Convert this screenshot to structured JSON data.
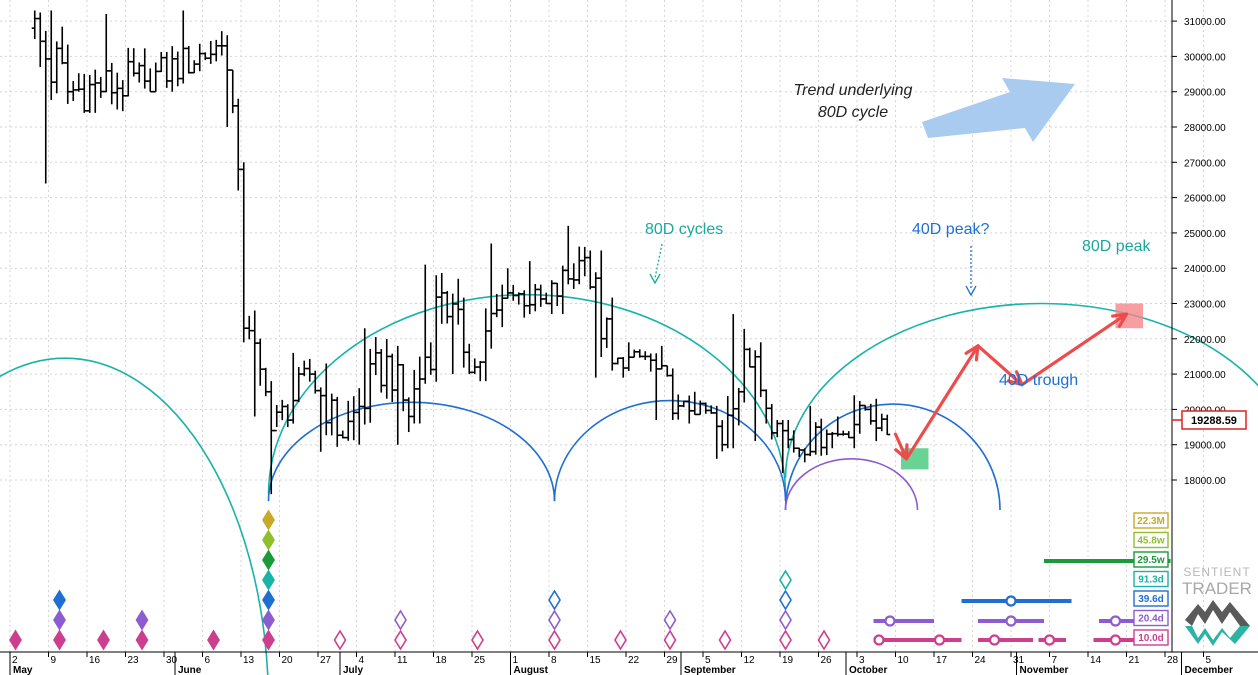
{
  "chart_data": {
    "type": "bar",
    "subtype": "ohlc-price-with-cycle-projections",
    "title": "",
    "xlabel": "",
    "ylabel": "",
    "ylim": [
      17300,
      31300
    ],
    "y_ticks": [
      18000,
      19000,
      20000,
      21000,
      22000,
      23000,
      24000,
      25000,
      26000,
      27000,
      28000,
      29000,
      30000,
      31000
    ],
    "y_tick_labels": [
      "18000.00",
      "19000.00",
      "20000.00",
      "21000.00",
      "22000.00",
      "23000.00",
      "24000.00",
      "25000.00",
      "26000.00",
      "27000.00",
      "28000.00",
      "29000.00",
      "30000.00",
      "31000.00"
    ],
    "last_price": 19288.59,
    "last_price_label": "19288.59",
    "x_axis": {
      "start_date": "2022-05-02",
      "end_date": "2022-12-05",
      "day_labels": [
        {
          "date": "2022-05-02",
          "label": "2"
        },
        {
          "date": "2022-05-09",
          "label": "9"
        },
        {
          "date": "2022-05-16",
          "label": "16"
        },
        {
          "date": "2022-05-23",
          "label": "23"
        },
        {
          "date": "2022-05-30",
          "label": "30"
        },
        {
          "date": "2022-06-06",
          "label": "6"
        },
        {
          "date": "2022-06-13",
          "label": "13"
        },
        {
          "date": "2022-06-20",
          "label": "20"
        },
        {
          "date": "2022-06-27",
          "label": "27"
        },
        {
          "date": "2022-07-04",
          "label": "4"
        },
        {
          "date": "2022-07-11",
          "label": "11"
        },
        {
          "date": "2022-07-18",
          "label": "18"
        },
        {
          "date": "2022-07-25",
          "label": "25"
        },
        {
          "date": "2022-08-01",
          "label": "1"
        },
        {
          "date": "2022-08-08",
          "label": "8"
        },
        {
          "date": "2022-08-15",
          "label": "15"
        },
        {
          "date": "2022-08-22",
          "label": "22"
        },
        {
          "date": "2022-08-29",
          "label": "29"
        },
        {
          "date": "2022-09-05",
          "label": "5"
        },
        {
          "date": "2022-09-12",
          "label": "12"
        },
        {
          "date": "2022-09-19",
          "label": "19"
        },
        {
          "date": "2022-09-26",
          "label": "26"
        },
        {
          "date": "2022-10-03",
          "label": "3"
        },
        {
          "date": "2022-10-10",
          "label": "10"
        },
        {
          "date": "2022-10-17",
          "label": "17"
        },
        {
          "date": "2022-10-24",
          "label": "24"
        },
        {
          "date": "2022-10-31",
          "label": "31"
        },
        {
          "date": "2022-11-07",
          "label": "7"
        },
        {
          "date": "2022-11-14",
          "label": "14"
        },
        {
          "date": "2022-11-21",
          "label": "21"
        },
        {
          "date": "2022-11-28",
          "label": "28"
        },
        {
          "date": "2022-12-05",
          "label": "5"
        }
      ],
      "month_labels": [
        {
          "date": "2022-05-02",
          "label": "May"
        },
        {
          "date": "2022-06-01",
          "label": "June"
        },
        {
          "date": "2022-07-01",
          "label": "July"
        },
        {
          "date": "2022-08-01",
          "label": "August"
        },
        {
          "date": "2022-09-01",
          "label": "September"
        },
        {
          "date": "2022-10-01",
          "label": "October"
        },
        {
          "date": "2022-11-01",
          "label": "November"
        },
        {
          "date": "2022-12-01",
          "label": "December"
        }
      ]
    },
    "ohlc_segments": [
      {
        "start": "2022-05-06",
        "end": "2022-05-13",
        "from": 30800,
        "to": 29000,
        "low": 26400,
        "high": 31300
      },
      {
        "start": "2022-05-13",
        "end": "2022-05-27",
        "from": 29000,
        "to": 29300,
        "low": 28400,
        "high": 31200
      },
      {
        "start": "2022-05-27",
        "end": "2022-06-10",
        "from": 29300,
        "to": 30300,
        "low": 29000,
        "high": 31300
      },
      {
        "start": "2022-06-10",
        "end": "2022-06-12",
        "from": 30300,
        "to": 28600,
        "low": 28000,
        "high": 30600
      },
      {
        "start": "2022-06-12",
        "end": "2022-06-13",
        "from": 28600,
        "to": 26800,
        "low": 26200,
        "high": 28800
      },
      {
        "start": "2022-06-13",
        "end": "2022-06-14",
        "from": 26800,
        "to": 22300,
        "low": 21900,
        "high": 27000
      },
      {
        "start": "2022-06-14",
        "end": "2022-06-18",
        "from": 22300,
        "to": 20500,
        "low": 19800,
        "high": 22800
      },
      {
        "start": "2022-06-18",
        "end": "2022-06-19",
        "from": 20500,
        "to": 19400,
        "low": 17600,
        "high": 20800
      },
      {
        "start": "2022-06-19",
        "end": "2022-06-26",
        "from": 19400,
        "to": 21000,
        "low": 19500,
        "high": 21600
      },
      {
        "start": "2022-06-26",
        "end": "2022-07-02",
        "from": 21000,
        "to": 19200,
        "low": 18800,
        "high": 21300
      },
      {
        "start": "2022-07-02",
        "end": "2022-07-10",
        "from": 19200,
        "to": 21500,
        "low": 19000,
        "high": 22300
      },
      {
        "start": "2022-07-10",
        "end": "2022-07-14",
        "from": 21500,
        "to": 19800,
        "low": 19000,
        "high": 21800
      },
      {
        "start": "2022-07-14",
        "end": "2022-07-20",
        "from": 19800,
        "to": 23300,
        "low": 19600,
        "high": 24100
      },
      {
        "start": "2022-07-20",
        "end": "2022-07-26",
        "from": 23300,
        "to": 21200,
        "low": 21000,
        "high": 23700
      },
      {
        "start": "2022-07-26",
        "end": "2022-08-01",
        "from": 21200,
        "to": 23300,
        "low": 20800,
        "high": 24700
      },
      {
        "start": "2022-08-01",
        "end": "2022-08-08",
        "from": 23300,
        "to": 23000,
        "low": 22600,
        "high": 24200
      },
      {
        "start": "2022-08-08",
        "end": "2022-08-15",
        "from": 23000,
        "to": 24300,
        "low": 22700,
        "high": 25200
      },
      {
        "start": "2022-08-15",
        "end": "2022-08-20",
        "from": 24300,
        "to": 21300,
        "low": 20900,
        "high": 24500
      },
      {
        "start": "2022-08-20",
        "end": "2022-08-26",
        "from": 21300,
        "to": 21500,
        "low": 20900,
        "high": 21900
      },
      {
        "start": "2022-08-26",
        "end": "2022-09-01",
        "from": 21500,
        "to": 20100,
        "low": 19700,
        "high": 21800
      },
      {
        "start": "2022-09-01",
        "end": "2022-09-07",
        "from": 20100,
        "to": 19900,
        "low": 19600,
        "high": 20500
      },
      {
        "start": "2022-09-07",
        "end": "2022-09-09",
        "from": 19900,
        "to": 19000,
        "low": 18600,
        "high": 20100
      },
      {
        "start": "2022-09-09",
        "end": "2022-09-13",
        "from": 19000,
        "to": 21700,
        "low": 18900,
        "high": 22700
      },
      {
        "start": "2022-09-13",
        "end": "2022-09-19",
        "from": 21700,
        "to": 19600,
        "low": 19100,
        "high": 21900
      },
      {
        "start": "2022-09-19",
        "end": "2022-09-22",
        "from": 19600,
        "to": 18900,
        "low": 18200,
        "high": 19700
      },
      {
        "start": "2022-09-22",
        "end": "2022-09-28",
        "from": 18900,
        "to": 19300,
        "low": 18500,
        "high": 20100
      },
      {
        "start": "2022-09-28",
        "end": "2022-10-01",
        "from": 19300,
        "to": 19300,
        "low": 18900,
        "high": 19800
      },
      {
        "start": "2022-10-01",
        "end": "2022-10-05",
        "from": 19300,
        "to": 20000,
        "low": 18900,
        "high": 20400
      },
      {
        "start": "2022-10-05",
        "end": "2022-10-09",
        "from": 20000,
        "to": 19288.59,
        "low": 19100,
        "high": 20300
      }
    ],
    "cycle_arcs": [
      {
        "color": "#19b3a8",
        "start": "2022-04-05",
        "end": "2022-06-18",
        "peak": 21450,
        "base": null
      },
      {
        "color": "#19b3a8",
        "start": "2022-06-18",
        "end": "2022-09-20",
        "peak": 23250,
        "base": 17600
      },
      {
        "color": "#19b3a8",
        "start": "2022-09-20",
        "end": "2022-12-22",
        "peak": 23000,
        "base": 18050
      },
      {
        "color": "#1f6fd2",
        "start": "2022-06-18",
        "end": "2022-08-09",
        "peak": 20200,
        "base": 17400
      },
      {
        "color": "#1f6fd2",
        "start": "2022-08-09",
        "end": "2022-09-20",
        "peak": 20250,
        "base": 17400
      },
      {
        "color": "#1f6fd2",
        "start": "2022-09-20",
        "end": "2022-10-29",
        "peak": 20150,
        "base": 17150
      },
      {
        "color": "#8e5cd1",
        "start": "2022-09-20",
        "end": "2022-10-14",
        "peak": 18600,
        "base": 17150
      }
    ],
    "projection_path": [
      {
        "date": "2022-10-10",
        "value": 19300
      },
      {
        "date": "2022-10-12",
        "value": 18600
      },
      {
        "date": "2022-10-25",
        "value": 21800
      },
      {
        "date": "2022-11-02",
        "value": 20700
      },
      {
        "date": "2022-11-21",
        "value": 22700
      }
    ],
    "target_boxes": [
      {
        "color": "#44c77a",
        "start": "2022-10-11",
        "end": "2022-10-16",
        "low": 18300,
        "high": 18900
      },
      {
        "color": "#f4868a",
        "start": "2022-11-19",
        "end": "2022-11-24",
        "low": 22300,
        "high": 23000
      }
    ],
    "annotations": {
      "trend_text": [
        "Trend underlying",
        "80D cycle"
      ],
      "label_80d_cycles": "80D cycles",
      "label_40d_peak": "40D peak?",
      "label_80d_peak": "80D peak",
      "label_40d_trough": "40D trough"
    },
    "cycle_tags": [
      {
        "label": "22.3M",
        "color": "#c8a92a"
      },
      {
        "label": "45.8w",
        "color": "#8fbf2a"
      },
      {
        "label": "29.5w",
        "color": "#1a9a3a"
      },
      {
        "label": "91.3d",
        "color": "#19b3a8"
      },
      {
        "label": "39.6d",
        "color": "#1f6fd2"
      },
      {
        "label": "20.4d",
        "color": "#8e5cd1"
      },
      {
        "label": "10.0d",
        "color": "#cc3f8f"
      }
    ],
    "markers": {
      "rows": [
        {
          "color": "#cc3f8f",
          "filled": [
            "2022-05-03",
            "2022-05-11",
            "2022-05-19",
            "2022-05-26",
            "2022-06-08",
            "2022-06-18"
          ],
          "hollow": [
            "2022-07-01",
            "2022-07-12",
            "2022-07-26",
            "2022-08-09",
            "2022-08-21",
            "2022-08-30",
            "2022-09-09",
            "2022-09-20",
            "2022-09-27"
          ]
        },
        {
          "color": "#8e5cd1",
          "filled": [
            "2022-05-11",
            "2022-05-26",
            "2022-06-18"
          ],
          "hollow": [
            "2022-07-12",
            "2022-08-09",
            "2022-08-30",
            "2022-09-20"
          ]
        },
        {
          "color": "#1f6fd2",
          "filled": [
            "2022-05-11",
            "2022-06-18"
          ],
          "hollow": [
            "2022-08-09",
            "2022-09-20"
          ]
        },
        {
          "color": "#19b3a8",
          "filled": [
            "2022-06-18"
          ],
          "hollow": [
            "2022-09-20"
          ]
        },
        {
          "color": "#1a9a3a",
          "filled": [
            "2022-06-18"
          ],
          "hollow": []
        },
        {
          "color": "#8fbf2a",
          "filled": [
            "2022-06-18"
          ],
          "hollow": []
        },
        {
          "color": "#c8a92a",
          "filled": [
            "2022-06-18"
          ],
          "hollow": []
        }
      ]
    },
    "projection_bars": [
      {
        "color": "#cc3f8f",
        "row": "10.0d",
        "ranges": [
          [
            "2022-10-06",
            "2022-10-15"
          ],
          [
            "2022-10-15",
            "2022-10-22"
          ],
          [
            "2022-10-25",
            "2022-11-04"
          ],
          [
            "2022-11-05",
            "2022-11-10"
          ],
          [
            "2022-11-15",
            "2022-11-25"
          ]
        ],
        "centers": [
          "2022-10-07",
          "2022-10-18",
          "2022-10-28",
          "2022-11-07",
          "2022-11-19"
        ]
      },
      {
        "color": "#8e5cd1",
        "row": "20.4d",
        "ranges": [
          [
            "2022-10-06",
            "2022-10-17"
          ],
          [
            "2022-10-25",
            "2022-11-06"
          ],
          [
            "2022-11-16",
            "2022-11-28"
          ]
        ],
        "centers": [
          "2022-10-09",
          "2022-10-31",
          "2022-11-19"
        ]
      },
      {
        "color": "#1f6fd2",
        "row": "39.6d",
        "ranges": [
          [
            "2022-10-22",
            "2022-11-11"
          ]
        ],
        "centers": [
          "2022-10-31"
        ]
      },
      {
        "color": "#1a9a3a",
        "row": "29.5w",
        "ranges": [
          [
            "2022-11-06",
            "2022-11-29"
          ]
        ],
        "centers": []
      }
    ],
    "logo": {
      "line1": "SENTIENT",
      "line2": "TRADER"
    }
  }
}
